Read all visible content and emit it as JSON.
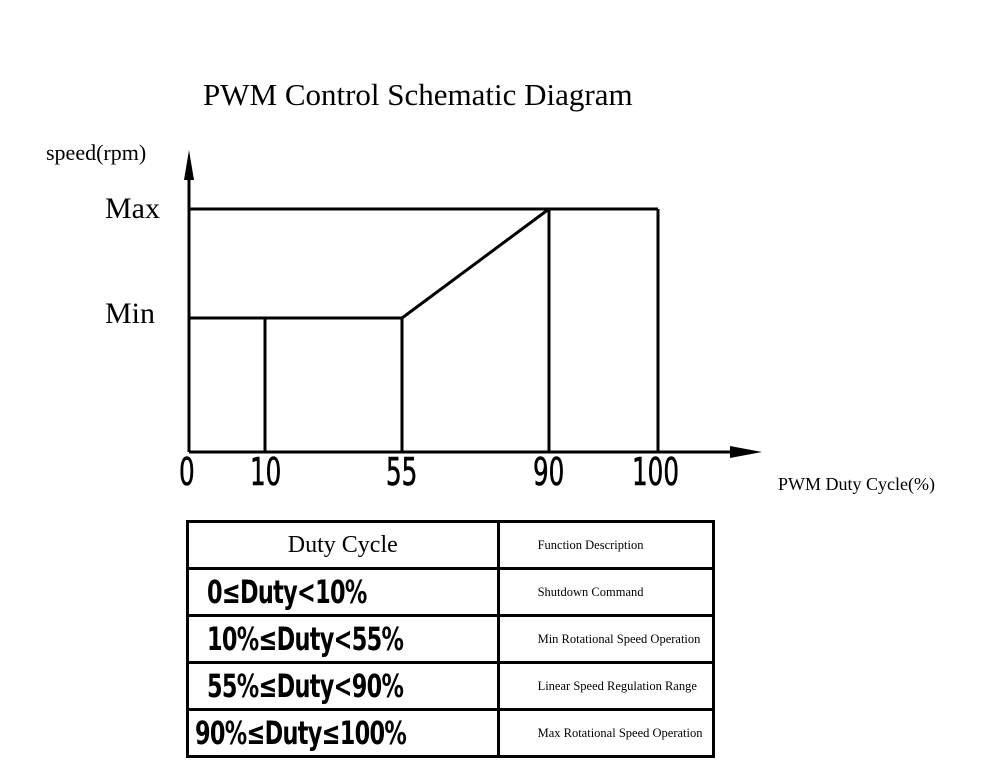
{
  "title": "PWM Control Schematic Diagram",
  "chart_data": {
    "type": "line",
    "title": "PWM Control Schematic Diagram",
    "ylabel": "speed(rpm)",
    "xlabel": "PWM Duty Cycle(%)",
    "x_ticks": [
      "0",
      "10",
      "55",
      "90",
      "100"
    ],
    "y_ticks": [
      "Min",
      "Max"
    ],
    "segments": [
      {
        "x": [
          0,
          10
        ],
        "speed": "0"
      },
      {
        "x": [
          10,
          55
        ],
        "speed": "Min"
      },
      {
        "x": [
          55,
          90
        ],
        "speed": "Min to Max (linear)"
      },
      {
        "x": [
          90,
          100
        ],
        "speed": "Max"
      }
    ]
  },
  "table": {
    "header": [
      "Duty Cycle",
      "Function Description"
    ],
    "rows": [
      {
        "duty": "0≤Duty<10%",
        "function": "Shutdown Command"
      },
      {
        "duty": "10%≤Duty<55%",
        "function": "Min Rotational Speed Operation"
      },
      {
        "duty": "55%≤Duty<90%",
        "function": "Linear Speed Regulation Range"
      },
      {
        "duty": "90%≤Duty≤100%",
        "function": "Max Rotational Speed Operation"
      }
    ]
  }
}
